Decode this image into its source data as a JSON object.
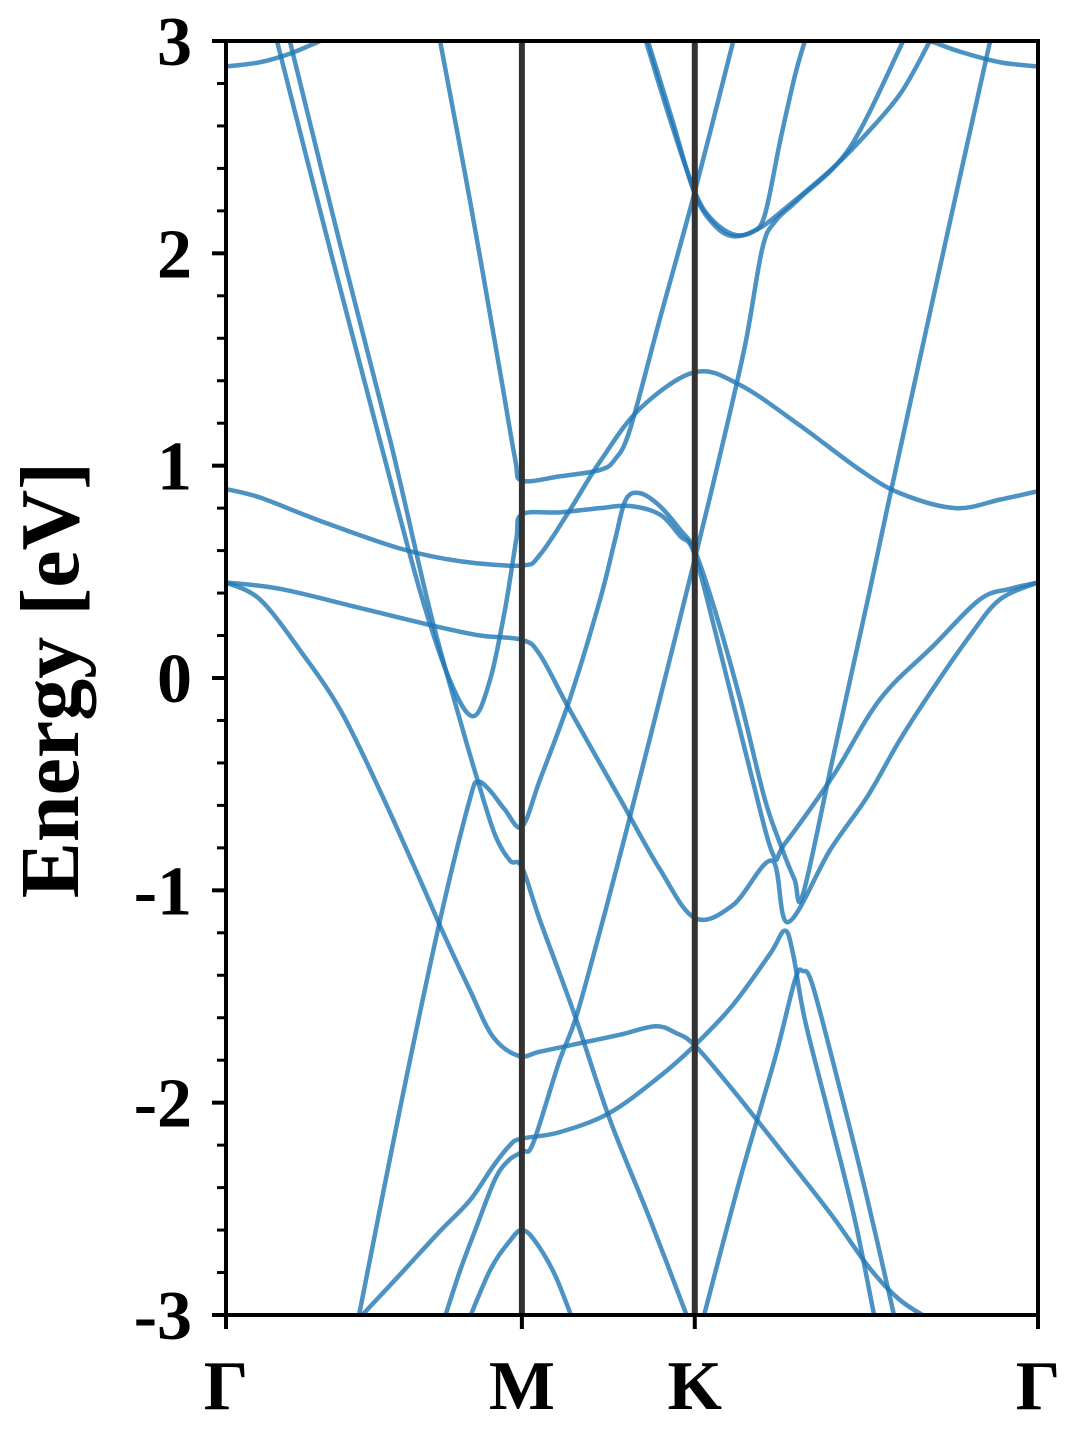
{
  "chart_data": {
    "type": "line",
    "title": "",
    "xlabel": "",
    "ylabel": "Energy [eV]",
    "xlim": [
      0,
      1.578
    ],
    "ylim": [
      -3,
      3
    ],
    "grid": false,
    "xticks": [
      {
        "label": "Γ",
        "k": 0
      },
      {
        "label": "M",
        "k": 0.575
      },
      {
        "label": "K",
        "k": 0.911
      },
      {
        "label": "Γ",
        "k": 1.578
      }
    ],
    "yticks": [
      {
        "label": "3",
        "value": 3
      },
      {
        "label": "2",
        "value": 2
      },
      {
        "label": "1",
        "value": 1
      },
      {
        "label": "0",
        "value": 0
      },
      {
        "label": "-1",
        "value": -1
      },
      {
        "label": "-2",
        "value": -2
      },
      {
        "label": "-3",
        "value": -3
      }
    ],
    "minor_ytick_step": 0.2,
    "high_symmetry_lines": [
      0.575,
      0.911
    ],
    "colors": {
      "band": "#1f77b4",
      "symmetry_line": "#333333",
      "axes": "#000000"
    },
    "bands": [
      [
        [
          0,
          2.88
        ],
        [
          0.066,
          2.9
        ],
        [
          0.124,
          2.94
        ],
        [
          0.183,
          3.0
        ],
        [
          0.222,
          3.04
        ]
      ],
      [
        [
          1.31,
          3.04
        ],
        [
          1.368,
          3.0
        ],
        [
          1.426,
          2.95
        ],
        [
          1.504,
          2.9
        ],
        [
          1.578,
          2.88
        ]
      ],
      [
        [
          0.099,
          3.0
        ],
        [
          0.202,
          2.02
        ],
        [
          0.299,
          1.12
        ],
        [
          0.377,
          0.41
        ],
        [
          0.435,
          -0.01
        ],
        [
          0.48,
          -0.18
        ],
        [
          0.513,
          -0.01
        ],
        [
          0.542,
          0.32
        ],
        [
          0.564,
          0.65
        ],
        [
          0.575,
          0.77
        ],
        [
          0.649,
          0.78
        ],
        [
          0.727,
          0.8
        ],
        [
          0.785,
          0.81
        ],
        [
          0.843,
          0.77
        ],
        [
          0.882,
          0.67
        ],
        [
          0.911,
          0.58
        ],
        [
          0.96,
          0.13
        ],
        [
          1.018,
          -0.43
        ],
        [
          1.063,
          -0.83
        ],
        [
          1.086,
          -0.78
        ],
        [
          1.18,
          -0.46
        ],
        [
          1.271,
          -0.1
        ],
        [
          1.374,
          0.15
        ],
        [
          1.465,
          0.37
        ],
        [
          1.524,
          0.42
        ],
        [
          1.578,
          0.45
        ]
      ],
      [
        [
          0.124,
          3.0
        ],
        [
          0.222,
          2.04
        ],
        [
          0.319,
          1.12
        ],
        [
          0.396,
          0.32
        ],
        [
          0.455,
          -0.2
        ],
        [
          0.49,
          -0.49
        ],
        [
          0.523,
          -0.74
        ],
        [
          0.552,
          -0.86
        ],
        [
          0.575,
          -0.89
        ],
        [
          0.61,
          -1.14
        ],
        [
          0.678,
          -1.59
        ],
        [
          0.746,
          -2.08
        ],
        [
          0.824,
          -2.55
        ],
        [
          0.906,
          -3.07
        ]
      ],
      [
        [
          0.416,
          3.0
        ],
        [
          0.474,
          2.25
        ],
        [
          0.532,
          1.45
        ],
        [
          0.562,
          1.03
        ],
        [
          0.575,
          0.93
        ],
        [
          0.649,
          0.95
        ],
        [
          0.727,
          0.98
        ],
        [
          0.756,
          1.03
        ],
        [
          0.785,
          1.17
        ],
        [
          0.843,
          1.69
        ],
        [
          0.911,
          2.29
        ],
        [
          0.989,
          3.03
        ]
      ],
      [
        [
          0,
          0.89
        ],
        [
          0.066,
          0.85
        ],
        [
          0.183,
          0.74
        ],
        [
          0.338,
          0.61
        ],
        [
          0.455,
          0.55
        ],
        [
          0.575,
          0.53
        ],
        [
          0.61,
          0.58
        ],
        [
          0.668,
          0.79
        ],
        [
          0.727,
          1.02
        ],
        [
          0.805,
          1.27
        ],
        [
          0.911,
          1.44
        ],
        [
          0.999,
          1.38
        ],
        [
          1.115,
          1.19
        ],
        [
          1.232,
          0.98
        ],
        [
          1.31,
          0.87
        ],
        [
          1.417,
          0.8
        ],
        [
          1.504,
          0.84
        ],
        [
          1.578,
          0.88
        ]
      ],
      [
        [
          0,
          0.45
        ],
        [
          0.105,
          0.42
        ],
        [
          0.26,
          0.33
        ],
        [
          0.396,
          0.25
        ],
        [
          0.494,
          0.2
        ],
        [
          0.575,
          0.18
        ],
        [
          0.61,
          0.11
        ],
        [
          0.668,
          -0.15
        ],
        [
          0.766,
          -0.57
        ],
        [
          0.843,
          -0.9
        ],
        [
          0.911,
          -1.13
        ],
        [
          0.985,
          -1.07
        ],
        [
          1.061,
          -0.86
        ],
        [
          1.092,
          -1.15
        ],
        [
          1.174,
          -0.81
        ],
        [
          1.246,
          -0.56
        ],
        [
          1.31,
          -0.29
        ],
        [
          1.374,
          -0.05
        ],
        [
          1.446,
          0.2
        ],
        [
          1.504,
          0.37
        ],
        [
          1.578,
          0.45
        ]
      ],
      [
        [
          0,
          0.45
        ],
        [
          0.066,
          0.37
        ],
        [
          0.144,
          0.13
        ],
        [
          0.222,
          -0.15
        ],
        [
          0.299,
          -0.53
        ],
        [
          0.377,
          -0.95
        ],
        [
          0.422,
          -1.2
        ],
        [
          0.474,
          -1.47
        ],
        [
          0.519,
          -1.69
        ],
        [
          0.569,
          -1.78
        ],
        [
          0.61,
          -1.76
        ],
        [
          0.688,
          -1.72
        ],
        [
          0.766,
          -1.68
        ],
        [
          0.834,
          -1.64
        ],
        [
          0.873,
          -1.67
        ],
        [
          0.911,
          -1.73
        ],
        [
          0.985,
          -1.94
        ],
        [
          1.077,
          -2.22
        ],
        [
          1.174,
          -2.52
        ],
        [
          1.251,
          -2.78
        ],
        [
          1.31,
          -2.93
        ],
        [
          1.368,
          -3.02
        ]
      ],
      [
        [
          0.257,
          -3.02
        ],
        [
          0.338,
          -2.03
        ],
        [
          0.416,
          -1.14
        ],
        [
          0.474,
          -0.57
        ],
        [
          0.49,
          -0.49
        ],
        [
          0.513,
          -0.53
        ],
        [
          0.542,
          -0.62
        ],
        [
          0.575,
          -0.7
        ],
        [
          0.61,
          -0.48
        ],
        [
          0.668,
          -0.1
        ],
        [
          0.727,
          0.37
        ],
        [
          0.756,
          0.65
        ],
        [
          0.777,
          0.84
        ],
        [
          0.805,
          0.87
        ],
        [
          0.843,
          0.81
        ],
        [
          0.882,
          0.7
        ],
        [
          0.911,
          0.6
        ],
        [
          0.95,
          0.32
        ],
        [
          0.999,
          -0.1
        ],
        [
          1.047,
          -0.57
        ],
        [
          1.08,
          -0.8
        ],
        [
          1.105,
          -0.95
        ],
        [
          1.121,
          -1.02
        ],
        [
          1.18,
          -0.37
        ],
        [
          1.25,
          0.4
        ],
        [
          1.286,
          0.81
        ],
        [
          1.387,
          1.93
        ],
        [
          1.485,
          3.0
        ]
      ],
      [
        [
          0.257,
          -3.02
        ],
        [
          0.338,
          -2.81
        ],
        [
          0.414,
          -2.61
        ],
        [
          0.474,
          -2.46
        ],
        [
          0.519,
          -2.3
        ],
        [
          0.552,
          -2.2
        ],
        [
          0.573,
          -2.17
        ],
        [
          0.647,
          -2.14
        ],
        [
          0.744,
          -2.05
        ],
        [
          0.841,
          -1.88
        ],
        [
          0.911,
          -1.73
        ],
        [
          0.985,
          -1.54
        ],
        [
          1.057,
          -1.3
        ],
        [
          1.086,
          -1.19
        ],
        [
          1.102,
          -1.3
        ],
        [
          1.125,
          -1.61
        ],
        [
          1.174,
          -2.08
        ],
        [
          1.222,
          -2.55
        ],
        [
          1.261,
          -3.02
        ]
      ],
      [
        [
          0.927,
          -3.02
        ],
        [
          0.999,
          -2.36
        ],
        [
          1.067,
          -1.79
        ],
        [
          1.106,
          -1.42
        ],
        [
          1.121,
          -1.38
        ],
        [
          1.139,
          -1.44
        ],
        [
          1.183,
          -1.84
        ],
        [
          1.242,
          -2.41
        ],
        [
          1.3,
          -3.02
        ]
      ],
      [
        [
          0.424,
          -3.02
        ],
        [
          0.455,
          -2.79
        ],
        [
          0.486,
          -2.59
        ],
        [
          0.523,
          -2.36
        ],
        [
          0.55,
          -2.27
        ],
        [
          0.577,
          -2.23
        ],
        [
          0.597,
          -2.19
        ],
        [
          0.647,
          -1.81
        ],
        [
          0.68,
          -1.6
        ],
        [
          0.727,
          -1.19
        ],
        [
          0.777,
          -0.73
        ],
        [
          0.843,
          -0.1
        ],
        [
          0.911,
          0.56
        ],
        [
          0.96,
          1.05
        ],
        [
          1.009,
          1.57
        ],
        [
          1.042,
          2.02
        ],
        [
          1.067,
          2.15
        ],
        [
          1.115,
          2.26
        ],
        [
          1.213,
          2.5
        ],
        [
          1.316,
          3.0
        ]
      ],
      [
        [
          0.464,
          -3.07
        ],
        [
          0.513,
          -2.79
        ],
        [
          0.552,
          -2.65
        ],
        [
          0.575,
          -2.6
        ],
        [
          0.6,
          -2.65
        ],
        [
          0.639,
          -2.81
        ],
        [
          0.678,
          -3.05
        ]
      ],
      [
        [
          0.816,
          3.0
        ],
        [
          0.863,
          2.63
        ],
        [
          0.911,
          2.29
        ],
        [
          0.944,
          2.16
        ],
        [
          0.985,
          2.09
        ],
        [
          1.022,
          2.1
        ],
        [
          1.047,
          2.18
        ],
        [
          1.077,
          2.53
        ],
        [
          1.106,
          2.84
        ],
        [
          1.125,
          3.0
        ]
      ],
      [
        [
          0.82,
          3.0
        ],
        [
          0.867,
          2.63
        ],
        [
          0.911,
          2.28
        ],
        [
          0.95,
          2.13
        ],
        [
          0.989,
          2.08
        ],
        [
          1.038,
          2.12
        ],
        [
          1.096,
          2.23
        ],
        [
          1.174,
          2.39
        ],
        [
          1.232,
          2.53
        ],
        [
          1.31,
          2.75
        ],
        [
          1.368,
          3.0
        ]
      ]
    ]
  }
}
